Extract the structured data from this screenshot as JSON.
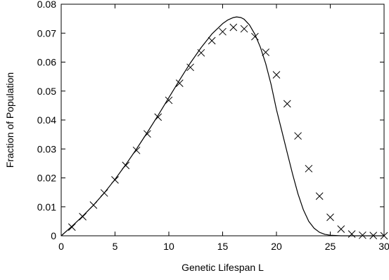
{
  "chart_data": {
    "type": "line",
    "xlabel": "Genetic Lifespan L",
    "ylabel": "Fraction of Population",
    "xlim": [
      0,
      30
    ],
    "ylim": [
      0,
      0.08
    ],
    "x_ticks": [
      0,
      5,
      10,
      15,
      20,
      25,
      30
    ],
    "x_tick_labels": [
      "0",
      "5",
      "10",
      "15",
      "20",
      "25",
      "30"
    ],
    "y_ticks": [
      0,
      0.01,
      0.02,
      0.03,
      0.04,
      0.05,
      0.06,
      0.07,
      0.08
    ],
    "y_tick_labels": [
      "0",
      "0.01",
      "0.02",
      "0.03",
      "0.04",
      "0.05",
      "0.06",
      "0.07",
      "0.08"
    ],
    "grid": false,
    "series": [
      {
        "style": "markers-x",
        "color": "#000000",
        "x": [
          1,
          2,
          3,
          4,
          5,
          6,
          7,
          8,
          9,
          10,
          11,
          12,
          13,
          14,
          15,
          16,
          17,
          18,
          19,
          20,
          21,
          22,
          23,
          24,
          25,
          26,
          27,
          28,
          29,
          30
        ],
        "y": [
          0.003,
          0.0066,
          0.0106,
          0.0148,
          0.0193,
          0.0243,
          0.0295,
          0.0352,
          0.041,
          0.0468,
          0.0527,
          0.0582,
          0.0632,
          0.0674,
          0.0705,
          0.072,
          0.0715,
          0.0688,
          0.0634,
          0.0556,
          0.0456,
          0.0345,
          0.0232,
          0.0137,
          0.0064,
          0.0023,
          0.0006,
          0.0002,
          0.0001,
          0.0
        ]
      },
      {
        "style": "line",
        "color": "#000000",
        "x": [
          0,
          1,
          2,
          3,
          4,
          5,
          6,
          7,
          8,
          9,
          10,
          11,
          12,
          13,
          14,
          15,
          15.5,
          16,
          16.3,
          16.7,
          17,
          17.5,
          18,
          18.5,
          19,
          19.5,
          20,
          20.5,
          21,
          21.5,
          22,
          22.5,
          23,
          23.5,
          24,
          24.5,
          25,
          25.5,
          26,
          26.5,
          27,
          28,
          29,
          30
        ],
        "y": [
          0.0,
          0.0033,
          0.0068,
          0.0106,
          0.0148,
          0.0195,
          0.0246,
          0.03,
          0.0357,
          0.0416,
          0.0477,
          0.0538,
          0.0597,
          0.065,
          0.0697,
          0.0733,
          0.0746,
          0.0754,
          0.0756,
          0.0754,
          0.0748,
          0.0728,
          0.0696,
          0.0652,
          0.0595,
          0.0523,
          0.0436,
          0.0362,
          0.0287,
          0.0213,
          0.0145,
          0.009,
          0.005,
          0.0026,
          0.0012,
          0.0005,
          0.0002,
          0.0001,
          0.0,
          0.0,
          0.0,
          0.0,
          0.0,
          0.0
        ]
      }
    ]
  }
}
